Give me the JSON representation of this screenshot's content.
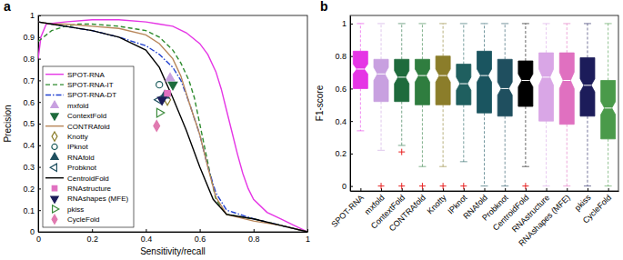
{
  "chart_data": [
    {
      "type": "line",
      "title": "a",
      "x_label": "Sensitivity/recall",
      "y_label": "Precision",
      "xlim": [
        0,
        1
      ],
      "ylim": [
        0,
        1
      ],
      "xticks": [
        0,
        0.2,
        0.4,
        0.6,
        0.8,
        1
      ],
      "yticks": [
        0,
        0.1,
        0.2,
        0.3,
        0.4,
        0.5,
        0.6,
        0.7,
        0.8,
        0.9,
        1
      ],
      "legend": "lower left",
      "series": [
        {
          "name": "SPOT-RNA",
          "type": "line",
          "color": "#e535e5",
          "line_style": "solid",
          "x": [
            0,
            0.01,
            0.03,
            0.1,
            0.2,
            0.3,
            0.4,
            0.45,
            0.5,
            0.55,
            0.6,
            0.63,
            0.66,
            0.68,
            0.7,
            0.72,
            0.74,
            0.76,
            0.78,
            0.8,
            0.85,
            0.9,
            0.95,
            1
          ],
          "values": [
            0.8,
            0.9,
            0.96,
            0.97,
            0.98,
            0.98,
            0.97,
            0.96,
            0.95,
            0.92,
            0.87,
            0.82,
            0.74,
            0.66,
            0.56,
            0.46,
            0.36,
            0.27,
            0.2,
            0.15,
            0.09,
            0.06,
            0.03,
            0
          ]
        },
        {
          "name": "SPOT-RNA-IT",
          "type": "line",
          "color": "#2e8b2e",
          "line_style": "dashed",
          "x": [
            0,
            0.02,
            0.05,
            0.1,
            0.15,
            0.2,
            0.3,
            0.4,
            0.45,
            0.5,
            0.53,
            0.56,
            0.58,
            0.6,
            0.62,
            0.64,
            0.66,
            0.7,
            0.8,
            0.9,
            1
          ],
          "values": [
            0.88,
            0.9,
            0.93,
            0.95,
            0.96,
            0.96,
            0.95,
            0.93,
            0.9,
            0.84,
            0.78,
            0.7,
            0.62,
            0.5,
            0.38,
            0.26,
            0.15,
            0.08,
            0.06,
            0.03,
            0
          ]
        },
        {
          "name": "SPOT-RNA-DT",
          "type": "line",
          "color": "#2040d0",
          "line_style": "dashdot",
          "x": [
            0,
            0.05,
            0.1,
            0.2,
            0.3,
            0.4,
            0.45,
            0.5,
            0.53,
            0.56,
            0.6,
            0.63,
            0.66,
            0.7,
            0.8,
            0.9,
            1
          ],
          "values": [
            0.97,
            0.96,
            0.95,
            0.93,
            0.9,
            0.86,
            0.82,
            0.76,
            0.7,
            0.6,
            0.45,
            0.3,
            0.18,
            0.1,
            0.06,
            0.03,
            0
          ]
        },
        {
          "name": "mxfold",
          "type": "scatter",
          "color": "#c8a0e0",
          "marker": "triangle-up",
          "x": [
            0.49
          ],
          "values": [
            0.71
          ]
        },
        {
          "name": "ContextFold",
          "type": "scatter",
          "color": "#1e6b3c",
          "marker": "triangle-down",
          "x": [
            0.5
          ],
          "values": [
            0.68
          ]
        },
        {
          "name": "CONTRAfold",
          "type": "line",
          "color": "#b8865a",
          "line_style": "solid",
          "x": [
            0,
            0.05,
            0.1,
            0.2,
            0.3,
            0.4,
            0.45,
            0.5,
            0.53,
            0.56,
            0.6,
            0.63,
            0.66,
            0.7,
            0.8,
            0.9,
            1
          ],
          "values": [
            0.97,
            0.96,
            0.96,
            0.95,
            0.94,
            0.91,
            0.87,
            0.8,
            0.72,
            0.6,
            0.45,
            0.3,
            0.16,
            0.08,
            0.05,
            0.03,
            0
          ]
        },
        {
          "name": "Knotty",
          "type": "scatter",
          "color": "#8b7d2a",
          "marker": "diamond-open",
          "x": [
            0.48
          ],
          "values": [
            0.61
          ]
        },
        {
          "name": "IPknot",
          "type": "scatter",
          "color": "#1f5f5f",
          "marker": "circle-open",
          "x": [
            0.45
          ],
          "values": [
            0.68
          ]
        },
        {
          "name": "RNAfold",
          "type": "scatter",
          "color": "#1f4f5f",
          "marker": "triangle-up",
          "x": [
            0.47
          ],
          "values": [
            0.63
          ]
        },
        {
          "name": "Probknot",
          "type": "scatter",
          "color": "#1f4f5f",
          "marker": "triangle-left-open",
          "x": [
            0.45
          ],
          "values": [
            0.61
          ]
        },
        {
          "name": "CentroidFold",
          "type": "line",
          "color": "#000000",
          "line_style": "solid",
          "x": [
            0,
            0.05,
            0.1,
            0.2,
            0.3,
            0.4,
            0.45,
            0.5,
            0.55,
            0.6,
            0.65,
            0.7,
            0.8,
            0.9,
            1
          ],
          "values": [
            0.97,
            0.96,
            0.95,
            0.93,
            0.9,
            0.84,
            0.76,
            0.62,
            0.47,
            0.3,
            0.15,
            0.08,
            0.06,
            0.03,
            0
          ]
        },
        {
          "name": "RNAstructure",
          "type": "scatter",
          "color": "#e070c0",
          "marker": "square",
          "x": [
            0.48
          ],
          "values": [
            0.64
          ]
        },
        {
          "name": "RNAshapes (MFE)",
          "type": "scatter",
          "color": "#1c1c5a",
          "marker": "triangle-down",
          "x": [
            0.46
          ],
          "values": [
            0.61
          ]
        },
        {
          "name": "pkiss",
          "type": "scatter",
          "color": "#3a8a3a",
          "marker": "triangle-right-open",
          "x": [
            0.45
          ],
          "values": [
            0.55
          ]
        },
        {
          "name": "CycleFold",
          "type": "scatter",
          "color": "#e07ab0",
          "marker": "diamond",
          "x": [
            0.44
          ],
          "values": [
            0.49
          ]
        }
      ]
    },
    {
      "type": "box",
      "title": "b",
      "y_label": "F1-score",
      "categories": [
        "SPOT-RNA",
        "mxfold",
        "ContextFold",
        "CONTRAfold",
        "Knotty",
        "IPknot",
        "RNAfold",
        "Probknot",
        "CentroidFold",
        "RNAstructure",
        "RNAshapes (MFE)",
        "pkiss",
        "CycleFold"
      ],
      "colors": [
        "#e535e5",
        "#c8a0e0",
        "#1e6b3c",
        "#2f7d3f",
        "#8b7d2a",
        "#1f5f5f",
        "#1a5560",
        "#1f4f5f",
        "#000000",
        "#d9a6e6",
        "#e070c0",
        "#1c1c5a",
        "#4a9a4a"
      ],
      "ylim": [
        -0.03,
        1.05
      ],
      "yticks": [
        0,
        0.2,
        0.4,
        0.6,
        0.8,
        1
      ],
      "whisker_low": [
        0.34,
        0.22,
        0.25,
        0.12,
        0.12,
        0.15,
        0,
        0,
        0.12,
        0,
        0,
        0,
        0
      ],
      "q1": [
        0.6,
        0.52,
        0.52,
        0.5,
        0.5,
        0.5,
        0.45,
        0.43,
        0.49,
        0.4,
        0.38,
        0.43,
        0.29
      ],
      "median": [
        0.72,
        0.69,
        0.67,
        0.68,
        0.68,
        0.63,
        0.68,
        0.6,
        0.65,
        0.67,
        0.65,
        0.62,
        0.48
      ],
      "q3": [
        0.83,
        0.78,
        0.78,
        0.78,
        0.8,
        0.75,
        0.83,
        0.78,
        0.77,
        0.82,
        0.82,
        0.79,
        0.65
      ],
      "whisker_high": [
        1,
        1,
        1,
        1,
        1,
        1,
        1,
        1,
        1,
        1,
        1,
        1,
        1
      ],
      "notch_low": [
        0.69,
        0.65,
        0.63,
        0.64,
        0.64,
        0.59,
        0.64,
        0.56,
        0.61,
        0.62,
        0.6,
        0.58,
        0.44
      ],
      "notch_high": [
        0.75,
        0.73,
        0.71,
        0.72,
        0.72,
        0.67,
        0.72,
        0.64,
        0.69,
        0.72,
        0.7,
        0.66,
        0.52
      ],
      "outliers": [
        [],
        [
          0
        ],
        [
          0.21,
          0
        ],
        [
          0
        ],
        [
          0
        ],
        [
          0
        ],
        [],
        [],
        [
          0
        ],
        [],
        [],
        [],
        []
      ]
    }
  ]
}
